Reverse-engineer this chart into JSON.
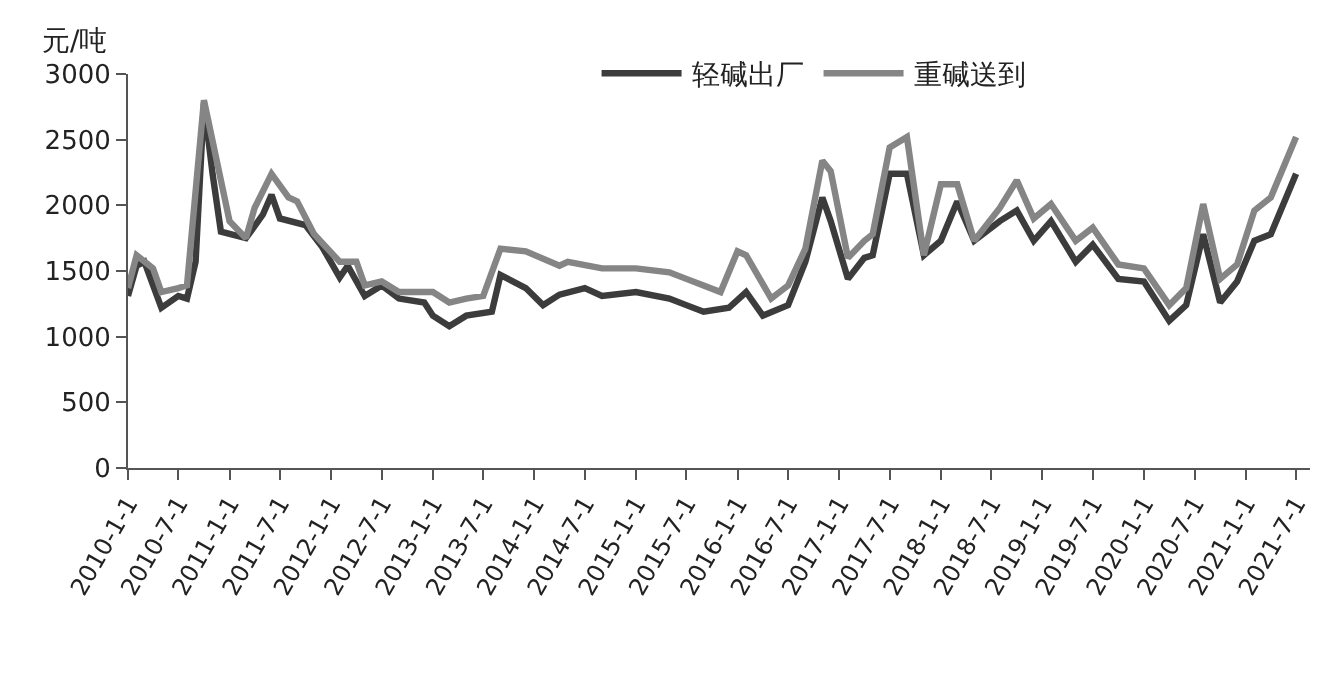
{
  "chart_data": {
    "type": "line",
    "ylabel": "元/吨",
    "legend": "top",
    "marker": "none",
    "line_style": "solid",
    "xlim": [
      "2010-01-01",
      "2021-08-20"
    ],
    "xticks": [
      {
        "value": "2010-01-01",
        "label": "2010-1-1"
      },
      {
        "value": "2010-07-01",
        "label": "2010-7-1"
      },
      {
        "value": "2011-01-01",
        "label": "2011-1-1"
      },
      {
        "value": "2011-07-01",
        "label": "2011-7-1"
      },
      {
        "value": "2012-01-01",
        "label": "2012-1-1"
      },
      {
        "value": "2012-07-01",
        "label": "2012-7-1"
      },
      {
        "value": "2013-01-01",
        "label": "2013-1-1"
      },
      {
        "value": "2013-07-01",
        "label": "2013-7-1"
      },
      {
        "value": "2014-01-01",
        "label": "2014-1-1"
      },
      {
        "value": "2014-07-01",
        "label": "2014-7-1"
      },
      {
        "value": "2015-01-01",
        "label": "2015-1-1"
      },
      {
        "value": "2015-07-01",
        "label": "2015-7-1"
      },
      {
        "value": "2016-01-01",
        "label": "2016-1-1"
      },
      {
        "value": "2016-07-01",
        "label": "2016-7-1"
      },
      {
        "value": "2017-01-01",
        "label": "2017-1-1"
      },
      {
        "value": "2017-07-01",
        "label": "2017-7-1"
      },
      {
        "value": "2018-01-01",
        "label": "2018-1-1"
      },
      {
        "value": "2018-07-01",
        "label": "2018-7-1"
      },
      {
        "value": "2019-01-01",
        "label": "2019-1-1"
      },
      {
        "value": "2019-07-01",
        "label": "2019-7-1"
      },
      {
        "value": "2020-01-01",
        "label": "2020-1-1"
      },
      {
        "value": "2020-07-01",
        "label": "2020-7-1"
      },
      {
        "value": "2021-01-01",
        "label": "2021-1-1"
      },
      {
        "value": "2021-07-01",
        "label": "2021-7-1"
      }
    ],
    "ylim": [
      0,
      3000
    ],
    "yticks": [
      0,
      500,
      1000,
      1500,
      2000,
      2500,
      3000
    ],
    "series": [
      {
        "name": "轻碱出厂",
        "color": "#3c3c3c",
        "x": [
          "2010-01",
          "2010-02",
          "2010-03",
          "2010-05",
          "2010-07",
          "2010-08",
          "2010-09",
          "2010-10",
          "2010-11",
          "2010-12",
          "2011-03",
          "2011-05",
          "2011-06",
          "2011-07",
          "2011-10",
          "2011-12",
          "2012-02",
          "2012-03",
          "2012-05",
          "2012-07",
          "2012-09",
          "2012-12",
          "2013-01",
          "2013-03",
          "2013-05",
          "2013-08",
          "2013-09",
          "2013-12",
          "2014-02",
          "2014-04",
          "2014-07",
          "2014-09",
          "2015-01",
          "2015-05",
          "2015-07",
          "2015-09",
          "2015-12",
          "2016-02",
          "2016-04",
          "2016-07",
          "2016-09",
          "2016-11",
          "2016-12",
          "2017-02",
          "2017-04",
          "2017-05",
          "2017-07",
          "2017-09",
          "2017-11",
          "2018-01",
          "2018-03",
          "2018-05",
          "2018-08",
          "2018-10",
          "2018-12",
          "2019-02",
          "2019-05",
          "2019-07",
          "2019-10",
          "2020-01",
          "2020-04",
          "2020-06",
          "2020-08",
          "2020-10",
          "2020-12",
          "2021-02",
          "2021-04",
          "2021-07"
        ],
        "values": [
          1310,
          1540,
          1570,
          1220,
          1310,
          1290,
          1570,
          2780,
          2240,
          1800,
          1750,
          1930,
          2080,
          1900,
          1850,
          1680,
          1450,
          1540,
          1310,
          1390,
          1290,
          1260,
          1160,
          1080,
          1160,
          1190,
          1470,
          1370,
          1240,
          1320,
          1370,
          1310,
          1340,
          1290,
          1240,
          1190,
          1220,
          1340,
          1160,
          1240,
          1570,
          2060,
          1880,
          1440,
          1600,
          1620,
          2240,
          2240,
          1620,
          1730,
          2030,
          1730,
          1880,
          1960,
          1730,
          1880,
          1570,
          1700,
          1440,
          1420,
          1120,
          1240,
          1780,
          1260,
          1420,
          1730,
          1780,
          2240
        ]
      },
      {
        "name": "重碱送到",
        "color": "#858585",
        "x": [
          "2010-01",
          "2010-02",
          "2010-04",
          "2010-05",
          "2010-07",
          "2010-08",
          "2010-10",
          "2010-12",
          "2011-01",
          "2011-03",
          "2011-04",
          "2011-06",
          "2011-08",
          "2011-09",
          "2011-11",
          "2012-02",
          "2012-04",
          "2012-05",
          "2012-07",
          "2012-09",
          "2013-01",
          "2013-03",
          "2013-05",
          "2013-07",
          "2013-09",
          "2013-12",
          "2014-04",
          "2014-05",
          "2014-09",
          "2015-01",
          "2015-05",
          "2015-07",
          "2015-09",
          "2015-11",
          "2016-01",
          "2016-02",
          "2016-05",
          "2016-07",
          "2016-09",
          "2016-11",
          "2016-12",
          "2017-02",
          "2017-04",
          "2017-05",
          "2017-07",
          "2017-09",
          "2017-11",
          "2018-01",
          "2018-03",
          "2018-05",
          "2018-08",
          "2018-10",
          "2018-12",
          "2019-02",
          "2019-05",
          "2019-07",
          "2019-10",
          "2020-01",
          "2020-04",
          "2020-06",
          "2020-08",
          "2020-10",
          "2020-12",
          "2021-02",
          "2021-04",
          "2021-07"
        ],
        "values": [
          1370,
          1620,
          1520,
          1340,
          1370,
          1390,
          2800,
          2190,
          1880,
          1750,
          1980,
          2240,
          2060,
          2030,
          1780,
          1570,
          1570,
          1390,
          1420,
          1340,
          1340,
          1260,
          1290,
          1310,
          1670,
          1650,
          1540,
          1570,
          1520,
          1520,
          1490,
          1440,
          1390,
          1340,
          1650,
          1620,
          1290,
          1390,
          1670,
          2340,
          2260,
          1600,
          1730,
          1780,
          2440,
          2520,
          1620,
          2160,
          2160,
          1730,
          1980,
          2190,
          1900,
          2010,
          1730,
          1830,
          1550,
          1520,
          1240,
          1370,
          2010,
          1440,
          1550,
          1960,
          2060,
          2520
        ]
      }
    ]
  }
}
